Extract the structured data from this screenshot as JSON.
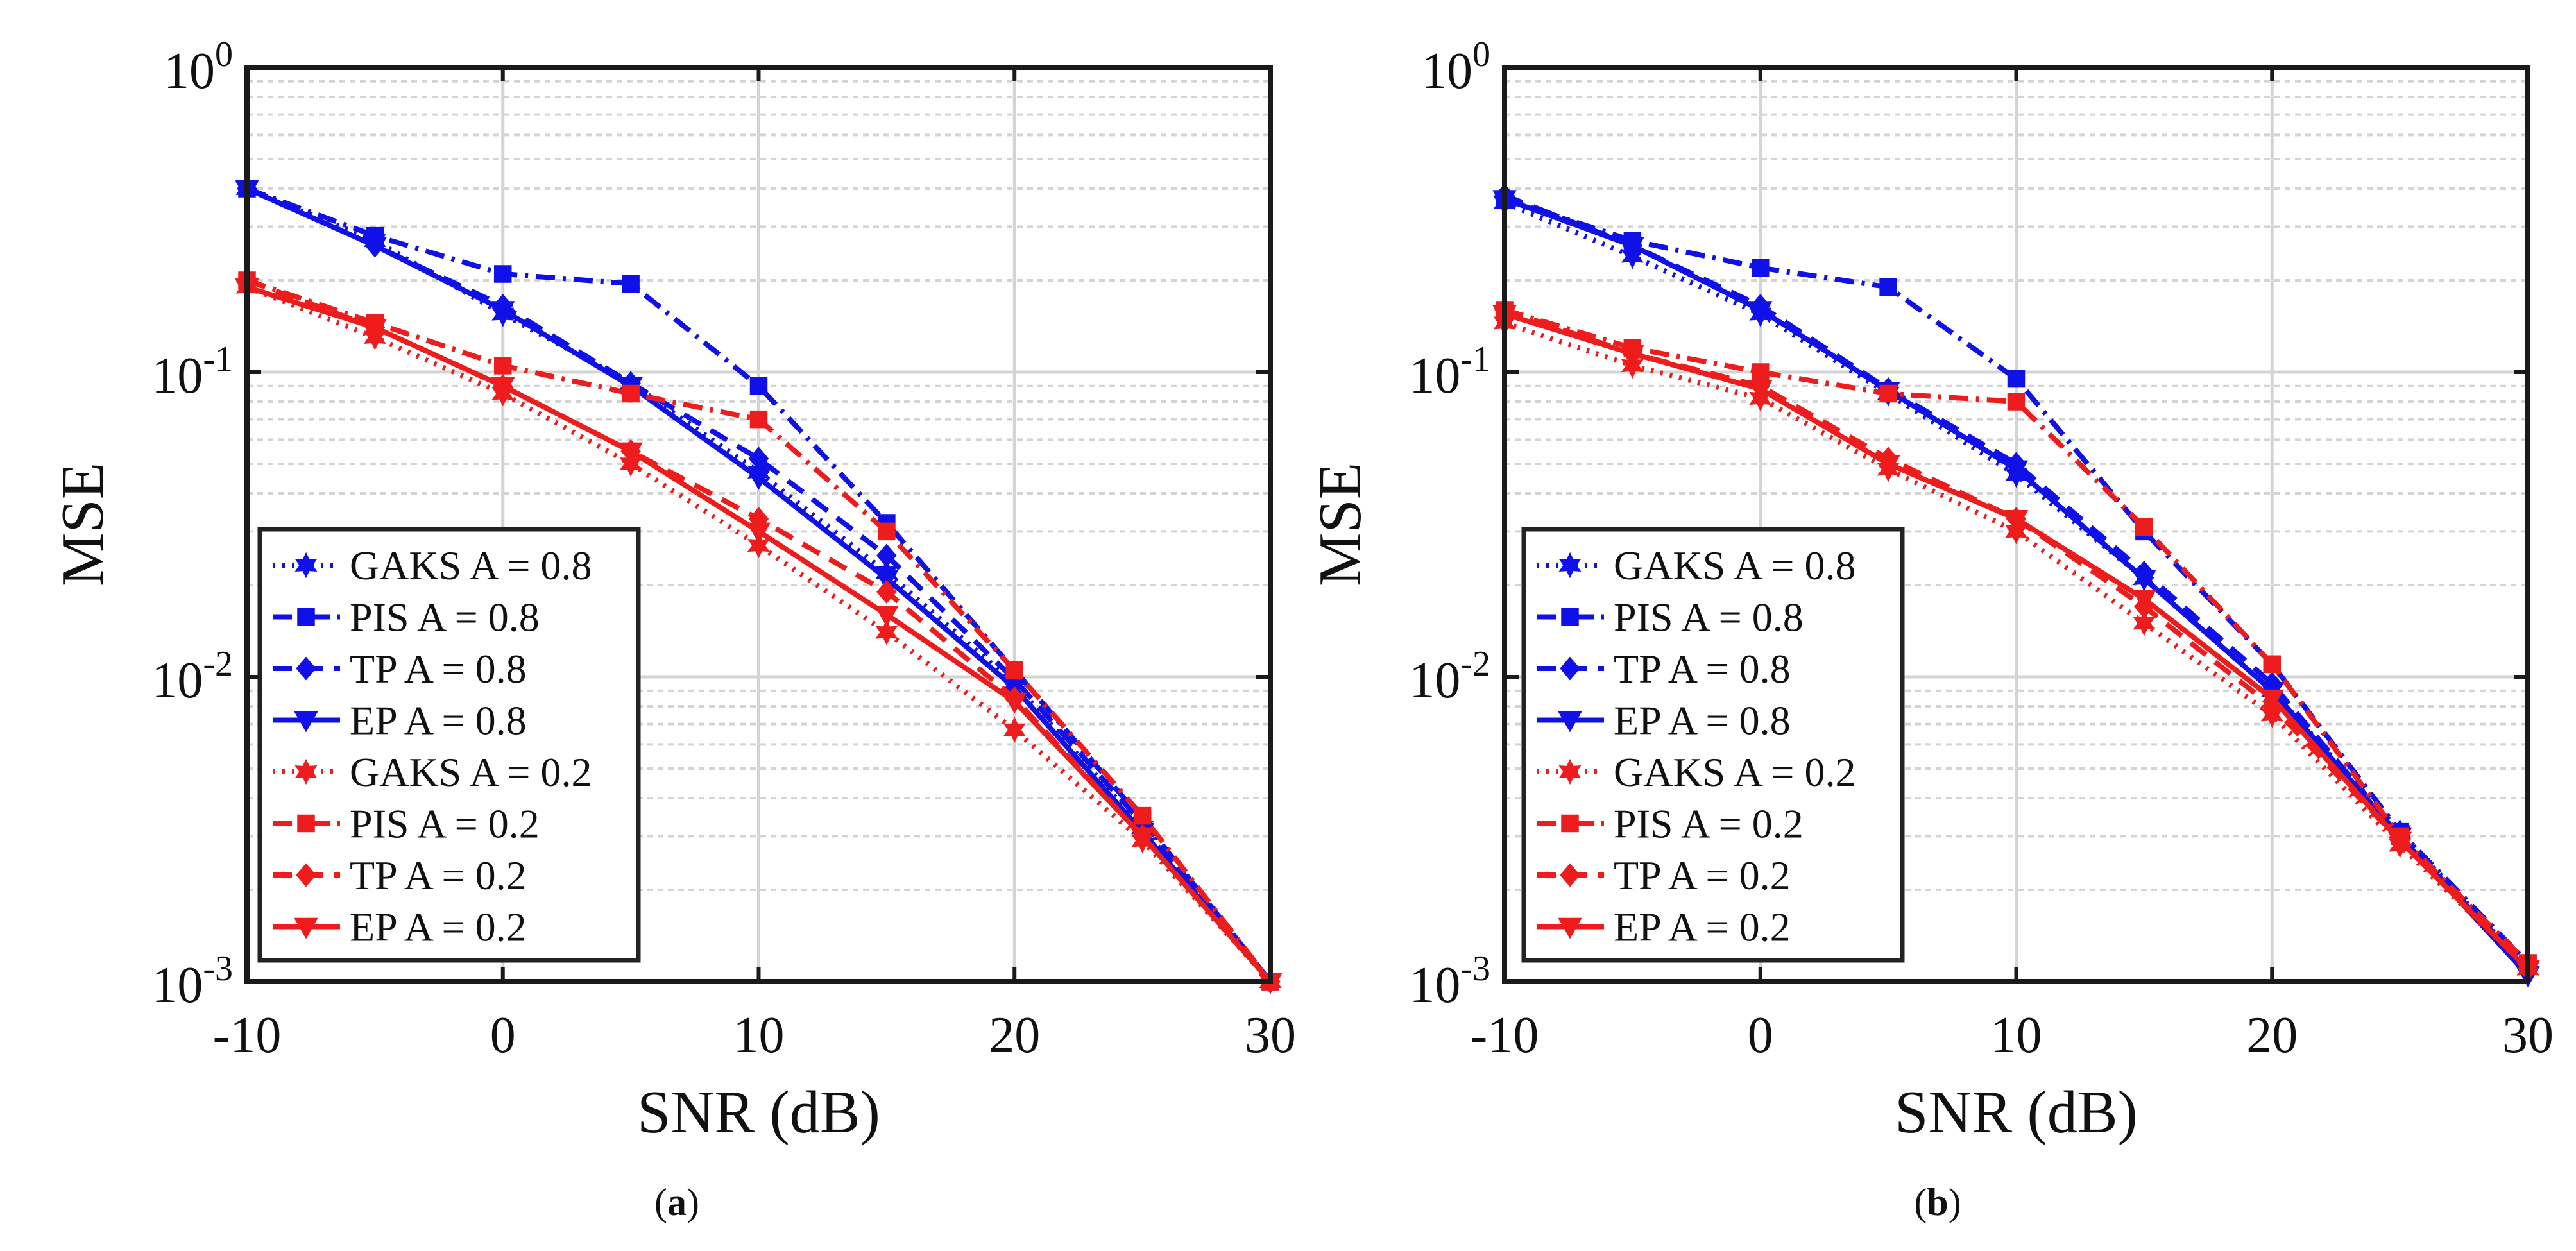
{
  "colors": {
    "blue": "#1010e8",
    "red": "#ee1c1c",
    "grid": "#d4d4d4",
    "axis": "#1a1a1a"
  },
  "chart_data": [
    {
      "type": "line",
      "label": "a",
      "xlabel": "SNR (dB)",
      "ylabel": "MSE",
      "yscale": "log",
      "xlim": [
        -10,
        30
      ],
      "ylim": [
        0.001,
        1
      ],
      "xticks": [
        "-10",
        "0",
        "10",
        "20",
        "30"
      ],
      "yticks": [
        {
          "base": "10",
          "exp": "0"
        },
        {
          "base": "10",
          "exp": "-1"
        },
        {
          "base": "10",
          "exp": "-2"
        },
        {
          "base": "10",
          "exp": "-3"
        }
      ],
      "grid": true,
      "legend_position": "bottom-left",
      "x": [
        -10,
        -5,
        0,
        5,
        10,
        15,
        20,
        25,
        30
      ],
      "series": [
        {
          "name": "GAKS A = 0.8",
          "color": "blue",
          "dash": "dotted",
          "marker": "hexagram",
          "values": [
            0.4,
            0.27,
            0.155,
            0.092,
            0.047,
            0.022,
            0.0095,
            0.0032,
            0.001
          ]
        },
        {
          "name": "PIS A = 0.8",
          "color": "blue",
          "dash": "dashdot",
          "marker": "square",
          "values": [
            0.4,
            0.28,
            0.21,
            0.195,
            0.09,
            0.032,
            0.0105,
            0.0034,
            0.001
          ]
        },
        {
          "name": "TP A = 0.8",
          "color": "blue",
          "dash": "dashed",
          "marker": "diamond",
          "values": [
            0.4,
            0.26,
            0.165,
            0.092,
            0.052,
            0.025,
            0.0098,
            0.0033,
            0.001
          ]
        },
        {
          "name": "EP A = 0.8",
          "color": "blue",
          "dash": "solid",
          "marker": "triangle-down",
          "values": [
            0.4,
            0.26,
            0.16,
            0.09,
            0.045,
            0.021,
            0.0092,
            0.0031,
            0.001
          ]
        },
        {
          "name": "GAKS A = 0.2",
          "color": "red",
          "dash": "dotted",
          "marker": "hexagram",
          "values": [
            0.19,
            0.13,
            0.085,
            0.05,
            0.027,
            0.014,
            0.0067,
            0.0029,
            0.001
          ]
        },
        {
          "name": "PIS A = 0.2",
          "color": "red",
          "dash": "dashdot",
          "marker": "square",
          "values": [
            0.2,
            0.145,
            0.105,
            0.085,
            0.07,
            0.03,
            0.0105,
            0.0035,
            0.001
          ]
        },
        {
          "name": "TP A = 0.2",
          "color": "red",
          "dash": "dashed",
          "marker": "diamond",
          "values": [
            0.2,
            0.14,
            0.09,
            0.055,
            0.033,
            0.019,
            0.0085,
            0.003,
            0.001
          ]
        },
        {
          "name": "EP A = 0.2",
          "color": "red",
          "dash": "solid",
          "marker": "triangle-down",
          "values": [
            0.19,
            0.14,
            0.09,
            0.055,
            0.03,
            0.016,
            0.0083,
            0.003,
            0.001
          ]
        }
      ]
    },
    {
      "type": "line",
      "label": "b",
      "xlabel": "SNR (dB)",
      "ylabel": "MSE",
      "yscale": "log",
      "xlim": [
        -10,
        30
      ],
      "ylim": [
        0.001,
        1
      ],
      "xticks": [
        "-10",
        "0",
        "10",
        "20",
        "30"
      ],
      "yticks": [
        {
          "base": "10",
          "exp": "0"
        },
        {
          "base": "10",
          "exp": "-1"
        },
        {
          "base": "10",
          "exp": "-2"
        },
        {
          "base": "10",
          "exp": "-3"
        }
      ],
      "grid": true,
      "legend_position": "bottom-left",
      "x": [
        -10,
        -5,
        0,
        5,
        10,
        15,
        20,
        25,
        30
      ],
      "series": [
        {
          "name": "GAKS A = 0.8",
          "color": "blue",
          "dash": "dotted",
          "marker": "hexagram",
          "values": [
            0.36,
            0.24,
            0.155,
            0.085,
            0.046,
            0.021,
            0.009,
            0.0031,
            0.0011
          ]
        },
        {
          "name": "PIS A = 0.8",
          "color": "blue",
          "dash": "dashdot",
          "marker": "square",
          "values": [
            0.37,
            0.27,
            0.22,
            0.19,
            0.095,
            0.03,
            0.011,
            0.0031,
            0.00115
          ]
        },
        {
          "name": "TP A = 0.8",
          "color": "blue",
          "dash": "dashed",
          "marker": "diamond",
          "values": [
            0.38,
            0.26,
            0.165,
            0.088,
            0.05,
            0.022,
            0.0095,
            0.003,
            0.0011
          ]
        },
        {
          "name": "EP A = 0.8",
          "color": "blue",
          "dash": "solid",
          "marker": "triangle-down",
          "values": [
            0.37,
            0.26,
            0.16,
            0.087,
            0.048,
            0.021,
            0.009,
            0.003,
            0.00105
          ]
        },
        {
          "name": "GAKS A = 0.2",
          "color": "red",
          "dash": "dotted",
          "marker": "hexagram",
          "values": [
            0.145,
            0.105,
            0.082,
            0.048,
            0.03,
            0.015,
            0.0075,
            0.0028,
            0.0011
          ]
        },
        {
          "name": "PIS A = 0.2",
          "color": "red",
          "dash": "dashdot",
          "marker": "square",
          "values": [
            0.16,
            0.12,
            0.1,
            0.085,
            0.08,
            0.031,
            0.011,
            0.003,
            0.00115
          ]
        },
        {
          "name": "TP A = 0.2",
          "color": "red",
          "dash": "dashed",
          "marker": "diamond",
          "values": [
            0.16,
            0.115,
            0.09,
            0.052,
            0.033,
            0.017,
            0.008,
            0.0029,
            0.0011
          ]
        },
        {
          "name": "EP A = 0.2",
          "color": "red",
          "dash": "solid",
          "marker": "triangle-down",
          "values": [
            0.155,
            0.115,
            0.088,
            0.05,
            0.033,
            0.018,
            0.0085,
            0.0029,
            0.0011
          ]
        }
      ]
    }
  ]
}
